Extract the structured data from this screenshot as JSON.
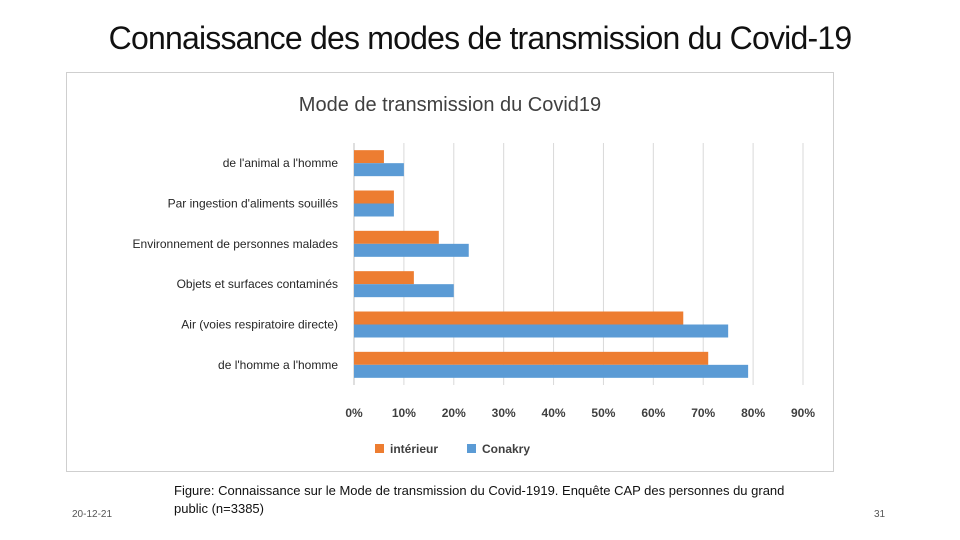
{
  "slide": {
    "title": "Connaissance des modes de transmission du Covid-19",
    "caption": "Figure: Connaissance sur le Mode de transmission du Covid-1919. Enquête CAP des personnes du grand public (n=3385)",
    "date": "20-12-21",
    "page_number": "31"
  },
  "colors": {
    "interieur": "#ED7D31",
    "conakry": "#5B9BD5",
    "grid": "#d9d9d9",
    "text": "#404040"
  },
  "chart_data": {
    "type": "bar",
    "orientation": "horizontal",
    "title": "Mode de transmission du Covid19",
    "categories": [
      "de l'animal a l'homme",
      "Par ingestion d'aliments souillés",
      "Environnement de personnes malades",
      "Objets et surfaces contaminés",
      "Air (voies respiratoire directe)",
      "de l'homme a l'homme"
    ],
    "series": [
      {
        "name": "intérieur",
        "values": [
          6,
          8,
          17,
          12,
          66,
          71
        ]
      },
      {
        "name": "Conakry",
        "values": [
          10,
          8,
          23,
          20,
          75,
          79
        ]
      }
    ],
    "xlim": [
      0,
      90
    ],
    "xticks": [
      "0%",
      "10%",
      "20%",
      "30%",
      "40%",
      "50%",
      "60%",
      "70%",
      "80%",
      "90%"
    ],
    "grid": true,
    "legend": "bottom"
  }
}
